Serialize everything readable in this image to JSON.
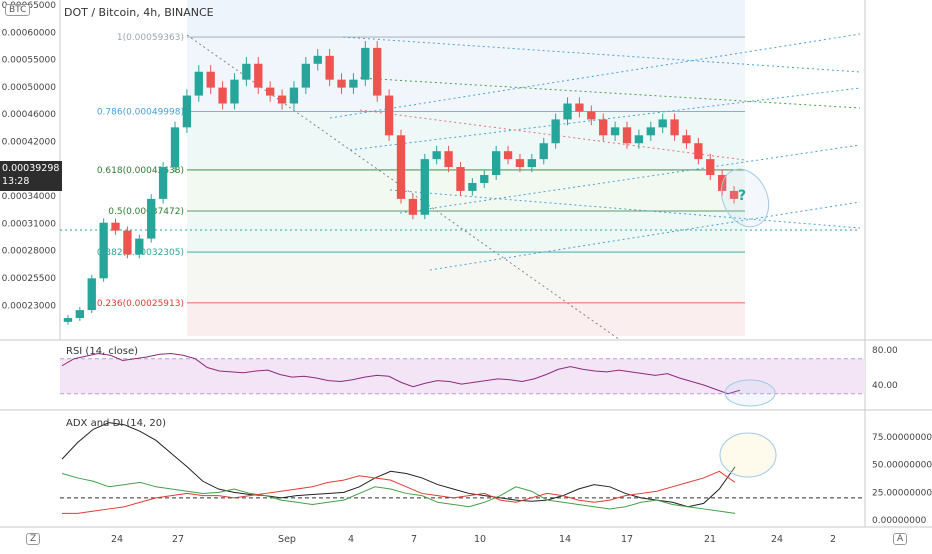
{
  "header": {
    "title": "DOT / Bitcoin, 4h, BINANCE"
  },
  "badges": {
    "currency": "BTC",
    "corner": "Z",
    "auto": "A"
  },
  "price_tag": {
    "value": "0.00039298",
    "countdown": "13:28"
  },
  "panels": {
    "rsi": {
      "label": "RSI (14, close)"
    },
    "adx": {
      "label": "ADX and DI (14, 20)"
    }
  },
  "chart_data": [
    {
      "type": "candlestick",
      "title": "DOT / Bitcoin, 4h, BINANCE",
      "x_ticks": [
        "24",
        "27",
        "Sep",
        "4",
        "7",
        "10",
        "14",
        "17",
        "21",
        "24",
        "2"
      ],
      "y_ticks": [
        "0.00065000",
        "0.00060000",
        "0.00055000",
        "0.00050000",
        "0.00046000",
        "0.00042000",
        "0.00038000",
        "0.00034000",
        "0.00031000",
        "0.00028000",
        "0.00025500",
        "0.00023000"
      ],
      "close_path": [
        0.00024,
        0.00025,
        0.00029,
        0.00036,
        0.00035,
        0.00032,
        0.00034,
        0.00039,
        0.00043,
        0.00048,
        0.00052,
        0.00055,
        0.00053,
        0.00051,
        0.00054,
        0.00056,
        0.00053,
        0.00052,
        0.00051,
        0.00053,
        0.00056,
        0.00057,
        0.00054,
        0.00053,
        0.00054,
        0.00058,
        0.00052,
        0.00047,
        0.00039,
        0.00037,
        0.00044,
        0.00045,
        0.00043,
        0.0004,
        0.00041,
        0.00042,
        0.00045,
        0.00044,
        0.00043,
        0.00044,
        0.00046,
        0.00049,
        0.00051,
        0.0005,
        0.00049,
        0.00047,
        0.00048,
        0.00046,
        0.00047,
        0.00048,
        0.00049,
        0.00047,
        0.00046,
        0.00044,
        0.00042,
        0.0004,
        0.00039
      ],
      "fib_levels": [
        {
          "label": "1(0.00059363)",
          "value": 0.00059363,
          "color": "#9aa4b1"
        },
        {
          "label": "0.786(0.00049998)",
          "value": 0.00049998,
          "color": "#4aa0d8"
        },
        {
          "label": "0.618(0.00042638)",
          "value": 0.00042638,
          "color": "#2e7d32"
        },
        {
          "label": "0.5(0.00037472)",
          "value": 0.00037472,
          "color": "#2e7d32"
        },
        {
          "label": "0.382(0.00032305)",
          "value": 0.00032305,
          "color": "#26a69a"
        },
        {
          "label": "0.236(0.00025913)",
          "value": 0.00025913,
          "color": "#e53935"
        }
      ],
      "annotations": [
        "?"
      ],
      "colors": {
        "up": "#26a69a",
        "down": "#ef5350",
        "channel": "#4aa0d8"
      }
    },
    {
      "type": "line",
      "title": "RSI (14, close)",
      "y_ticks": [
        "80.00",
        "40.00"
      ],
      "band": [
        30,
        70
      ],
      "series": [
        {
          "values": [
            62,
            70,
            73,
            76,
            74,
            68,
            70,
            72,
            75,
            76,
            74,
            70,
            60,
            56,
            55,
            54,
            56,
            57,
            52,
            49,
            50,
            48,
            45,
            44,
            46,
            49,
            51,
            50,
            43,
            38,
            42,
            45,
            44,
            41,
            43,
            45,
            47,
            46,
            44,
            47,
            52,
            58,
            61,
            58,
            56,
            55,
            57,
            55,
            53,
            51,
            53,
            48,
            44,
            40,
            35,
            30,
            34
          ],
          "color": "#8e2a7f"
        }
      ]
    },
    {
      "type": "line",
      "title": "ADX and DI (14, 20)",
      "y_ticks": [
        "75.00000000",
        "50.00000000",
        "25.00000000",
        "0.00000000"
      ],
      "reference_line": 20,
      "series": [
        {
          "values": [
            55,
            70,
            82,
            88,
            86,
            80,
            72,
            60,
            48,
            35,
            28,
            25,
            23,
            22,
            20,
            22,
            23,
            24,
            25,
            30,
            38,
            44,
            42,
            38,
            32,
            28,
            24,
            22,
            20,
            18,
            17,
            18,
            22,
            28,
            32,
            30,
            24,
            20,
            18,
            16,
            12,
            15,
            28,
            48
          ],
          "color": "#222222"
        },
        {
          "values": [
            42,
            38,
            35,
            30,
            32,
            34,
            30,
            28,
            26,
            24,
            25,
            28,
            24,
            22,
            18,
            16,
            14,
            16,
            18,
            24,
            30,
            28,
            24,
            22,
            16,
            14,
            12,
            16,
            22,
            30,
            26,
            18,
            16,
            14,
            12,
            10,
            12,
            16,
            18,
            14,
            12,
            10,
            8,
            6
          ],
          "color": "#43a047"
        },
        {
          "values": [
            6,
            6,
            8,
            10,
            12,
            16,
            20,
            22,
            24,
            22,
            22,
            20,
            22,
            24,
            26,
            28,
            30,
            34,
            36,
            40,
            38,
            36,
            30,
            24,
            22,
            20,
            22,
            24,
            18,
            16,
            20,
            24,
            22,
            18,
            16,
            18,
            22,
            24,
            26,
            30,
            34,
            38,
            44,
            34
          ],
          "color": "#e53935"
        }
      ]
    }
  ]
}
